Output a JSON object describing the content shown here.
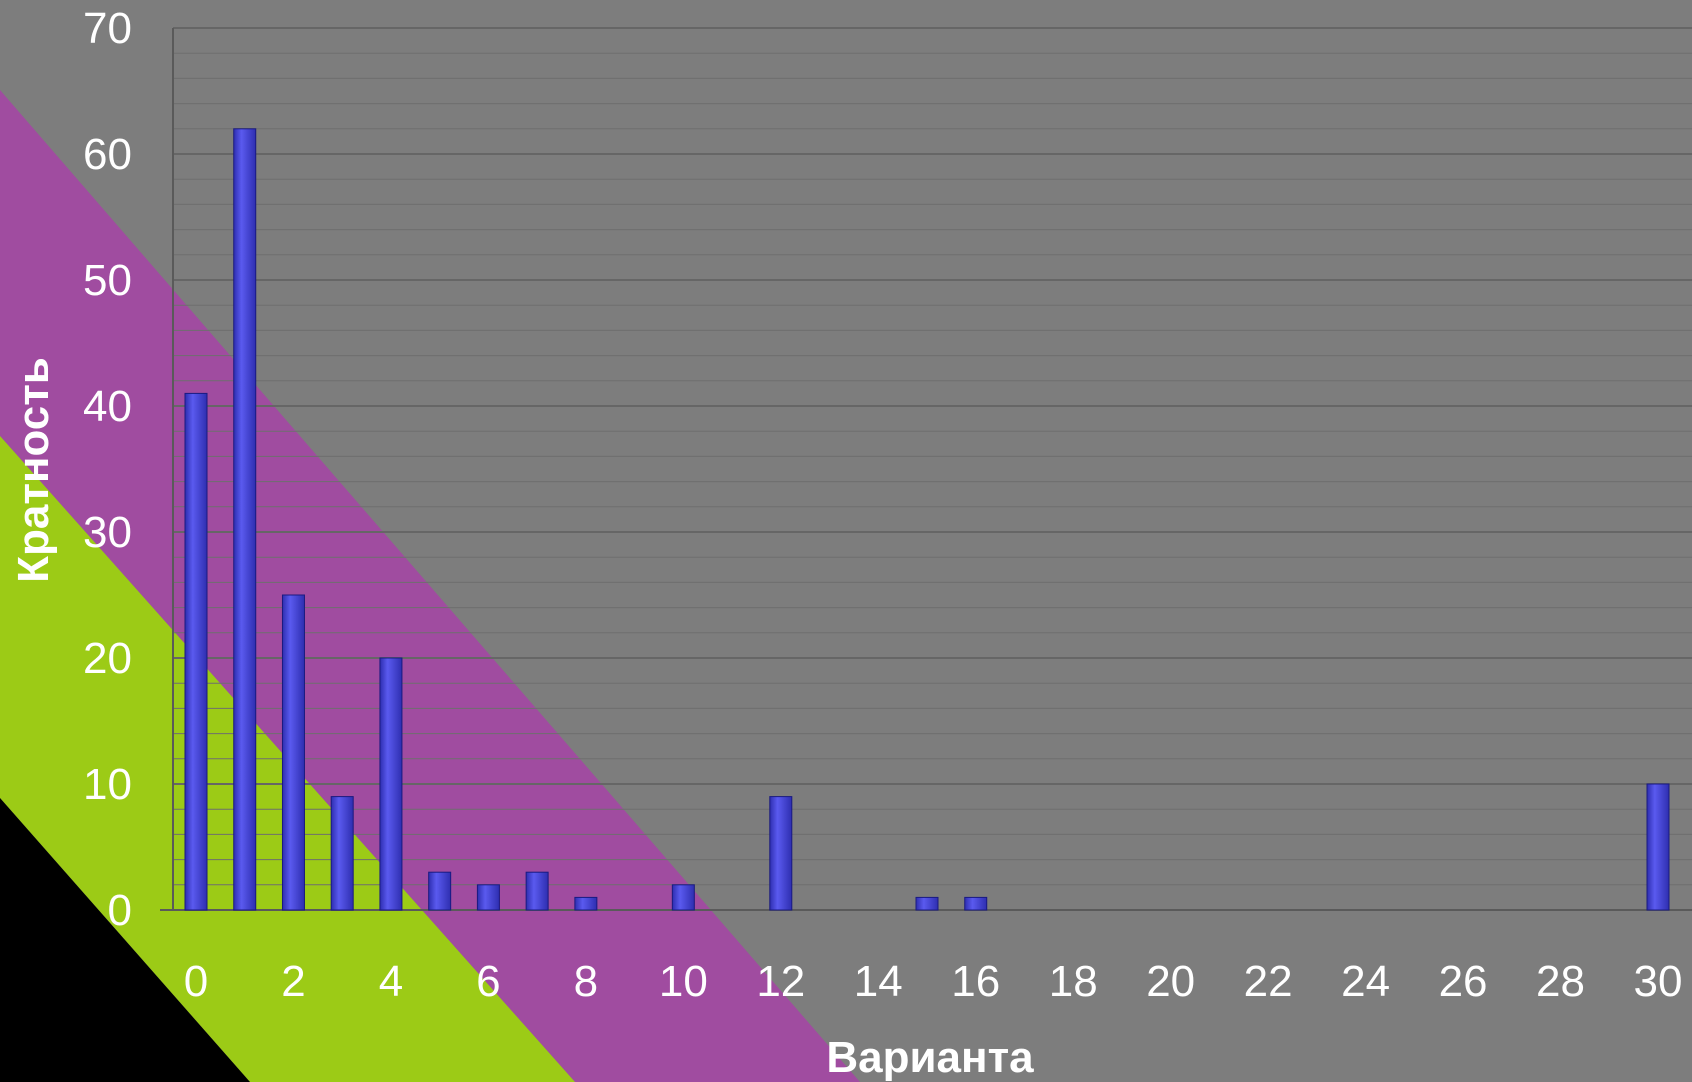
{
  "colors": {
    "background": "#7d7d7d",
    "band_black": "#000000",
    "band_green": "#9ccb16",
    "band_purple": "#a04ca0",
    "bar": "#2e2eb0",
    "bar_highlight": "#5a5aef",
    "grid_major": "#666666",
    "grid_minor": "#6e6e6e",
    "text": "#ffffff"
  },
  "chart_data": {
    "type": "bar",
    "title": "",
    "xlabel": "Варианта",
    "ylabel": "Кратность",
    "xlim": [
      0,
      30
    ],
    "ylim": [
      0,
      70
    ],
    "x_ticks": [
      "0",
      "2",
      "4",
      "6",
      "8",
      "10",
      "12",
      "14",
      "16",
      "18",
      "20",
      "22",
      "24",
      "26",
      "28",
      "30"
    ],
    "y_ticks": [
      "0",
      "10",
      "20",
      "30",
      "40",
      "50",
      "60",
      "70"
    ],
    "grid": true,
    "legend": "none",
    "x": [
      0,
      1,
      2,
      3,
      4,
      5,
      6,
      7,
      8,
      10,
      12,
      15,
      16,
      30
    ],
    "values": [
      41,
      62,
      25,
      9,
      20,
      3,
      2,
      3,
      1,
      2,
      9,
      1,
      1,
      10
    ]
  }
}
